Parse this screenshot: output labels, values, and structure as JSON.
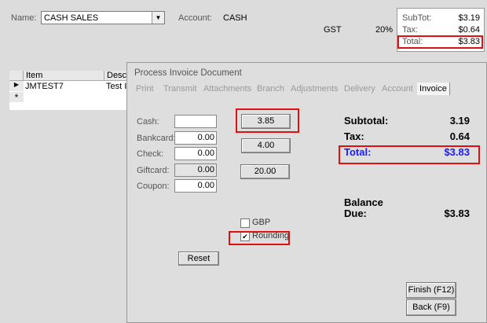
{
  "header": {
    "name_label": "Name:",
    "name_value": "CASH SALES",
    "account_label": "Account:",
    "account_value": "CASH",
    "tax_name": "GST",
    "tax_rate": "20%"
  },
  "totals": {
    "subtot_label": "SubTot:",
    "subtot": "$3.19",
    "tax_label": "Tax:",
    "tax": "$0.64",
    "total_label": "Total:",
    "total": "$3.83"
  },
  "grid": {
    "columns": [
      "Item",
      "Descri"
    ],
    "rows": [
      {
        "item": "JMTEST7",
        "desc": "Test Ite"
      }
    ]
  },
  "dialog": {
    "title": "Process Invoice Document",
    "tabs": [
      "Print",
      "Transmit",
      "Attachments",
      "Branch",
      "Adjustments",
      "Delivery",
      "Account",
      "Invoice"
    ],
    "active_tab": "Invoice",
    "payments": [
      {
        "label": "Cash:",
        "value": ""
      },
      {
        "label": "Bankcard:",
        "value": "0.00"
      },
      {
        "label": "Check:",
        "value": "0.00"
      },
      {
        "label": "Giftcard:",
        "value": "0.00"
      },
      {
        "label": "Coupon:",
        "value": "0.00"
      }
    ],
    "quick_buttons": [
      "3.85",
      "4.00",
      "20.00"
    ],
    "summary": {
      "subtotal_label": "Subtotal:",
      "subtotal": "3.19",
      "tax_label": "Tax:",
      "tax": "0.64",
      "total_label": "Total:",
      "total": "$3.83",
      "balance_label1": "Balance",
      "balance_label2": "Due:",
      "balance": "$3.83"
    },
    "gbp_label": "GBP",
    "gbp_checked": false,
    "rounding_label": "Rounding",
    "rounding_checked": true,
    "reset_label": "Reset",
    "finish_label": "Finish (F12)",
    "back_label": "Back (F9)"
  },
  "colors": {
    "highlight": "#e01010",
    "total_blue": "#1a1aff"
  }
}
